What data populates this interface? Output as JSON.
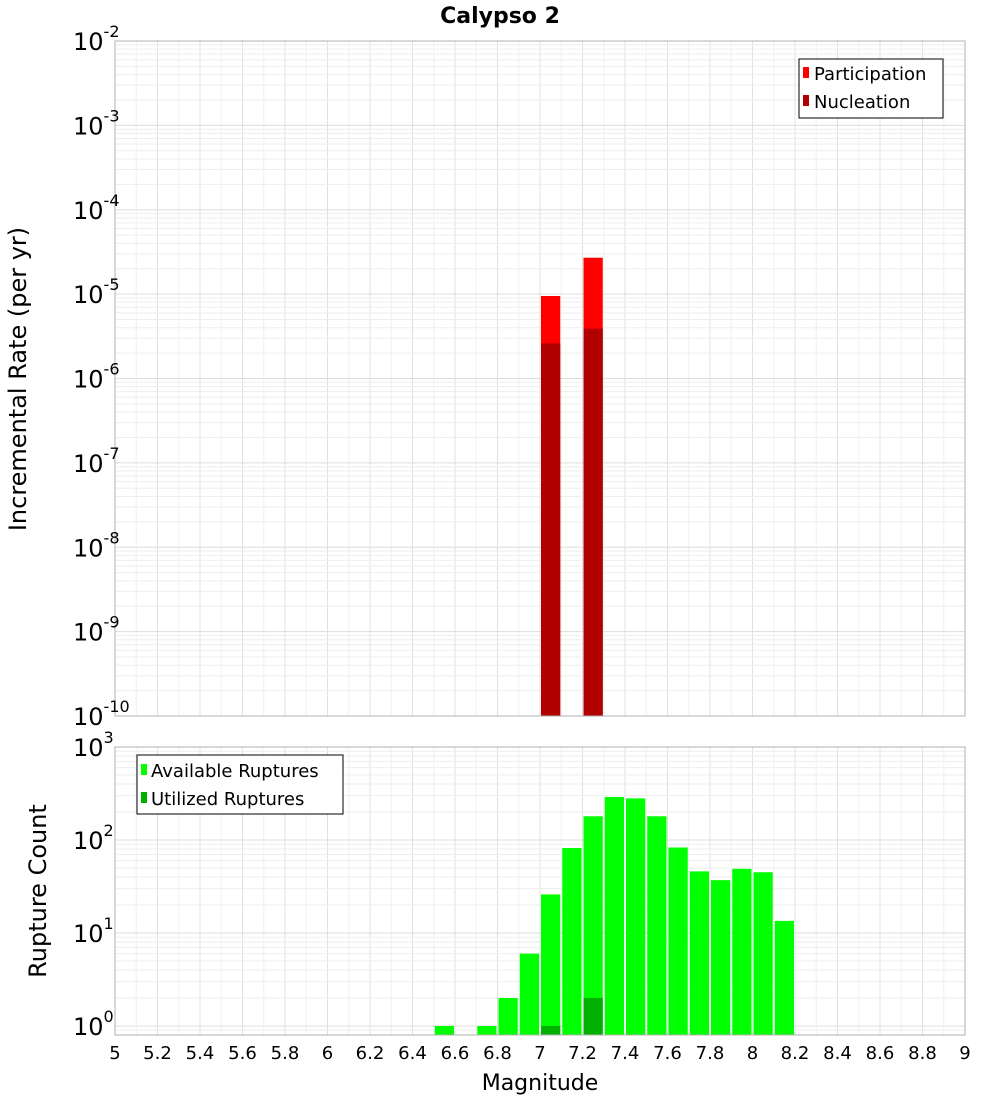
{
  "chart_data": [
    {
      "type": "bar",
      "title": "Calypso 2",
      "xlabel": "",
      "ylabel": "Incremental Rate (per yr)",
      "yscale": "log",
      "xlim": [
        5,
        9
      ],
      "ylim": [
        1e-10,
        0.01
      ],
      "y_tick_labels": [
        {
          "base": "10",
          "exp": "-2"
        },
        {
          "base": "10",
          "exp": "-3"
        },
        {
          "base": "10",
          "exp": "-4"
        },
        {
          "base": "10",
          "exp": "-5"
        },
        {
          "base": "10",
          "exp": "-6"
        },
        {
          "base": "10",
          "exp": "-7"
        },
        {
          "base": "10",
          "exp": "-8"
        },
        {
          "base": "10",
          "exp": "-9"
        },
        {
          "base": "10",
          "exp": "-10"
        }
      ],
      "grid": true,
      "legend_position": "top-right",
      "series": [
        {
          "name": "Participation",
          "color": "#ff0000",
          "points": [
            {
              "x": 7.05,
              "y": 9.5e-06
            },
            {
              "x": 7.25,
              "y": 2.7e-05
            }
          ]
        },
        {
          "name": "Nucleation",
          "color": "#b00000",
          "points": [
            {
              "x": 7.05,
              "y": 2.6e-06
            },
            {
              "x": 7.25,
              "y": 3.9e-06
            }
          ]
        }
      ]
    },
    {
      "type": "bar",
      "title": "",
      "xlabel": "Magnitude",
      "ylabel": "Rupture Count",
      "yscale": "log",
      "xlim": [
        5,
        9
      ],
      "ylim": [
        0.8,
        1000
      ],
      "x_tick_labels": [
        "5",
        "5.2",
        "5.4",
        "5.6",
        "5.8",
        "6",
        "6.2",
        "6.4",
        "6.6",
        "6.8",
        "7",
        "7.2",
        "7.4",
        "7.6",
        "7.8",
        "8",
        "8.2",
        "8.4",
        "8.6",
        "8.8",
        "9"
      ],
      "y_tick_labels": [
        {
          "base": "10",
          "exp": "3"
        },
        {
          "base": "10",
          "exp": "2"
        },
        {
          "base": "10",
          "exp": "1"
        },
        {
          "base": "10",
          "exp": "0"
        }
      ],
      "grid": true,
      "legend_position": "top-left",
      "series": [
        {
          "name": "Available Ruptures",
          "color": "#00ff00",
          "points": [
            {
              "x": 6.55,
              "y": 1
            },
            {
              "x": 6.75,
              "y": 1
            },
            {
              "x": 6.85,
              "y": 2
            },
            {
              "x": 6.95,
              "y": 6
            },
            {
              "x": 7.05,
              "y": 26
            },
            {
              "x": 7.15,
              "y": 82
            },
            {
              "x": 7.25,
              "y": 180
            },
            {
              "x": 7.35,
              "y": 290
            },
            {
              "x": 7.45,
              "y": 280
            },
            {
              "x": 7.55,
              "y": 180
            },
            {
              "x": 7.65,
              "y": 83
            },
            {
              "x": 7.75,
              "y": 46
            },
            {
              "x": 7.85,
              "y": 37
            },
            {
              "x": 7.95,
              "y": 49
            },
            {
              "x": 8.05,
              "y": 45
            },
            {
              "x": 8.15,
              "y": 13.5
            }
          ]
        },
        {
          "name": "Utilized Ruptures",
          "color": "#00b000",
          "points": [
            {
              "x": 7.05,
              "y": 1
            },
            {
              "x": 7.25,
              "y": 2
            }
          ]
        }
      ]
    }
  ]
}
